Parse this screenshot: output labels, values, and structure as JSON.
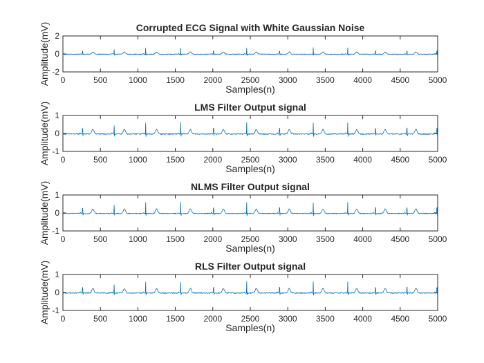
{
  "colors": {
    "signal": "#0072bd",
    "axis": "#262626",
    "background": "#ffffff"
  },
  "chart_data": [
    {
      "type": "line",
      "title": "Corrupted ECG Signal with White Gaussian Noise",
      "xlabel": "Samples(n)",
      "ylabel": "Amplitude(mV)",
      "xlim": [
        0,
        5000
      ],
      "ylim": [
        -2,
        2
      ],
      "xticks": [
        0,
        500,
        1000,
        1500,
        2000,
        2500,
        3000,
        3500,
        4000,
        4500,
        5000
      ],
      "yticks": [
        -2,
        0,
        2
      ],
      "baseline": -0.03,
      "noise": 0.035,
      "r_peak_amplitude": 0.7,
      "r_peak_samples": [
        262,
        683,
        1104,
        1572,
        2010,
        2452,
        2890,
        3340,
        3800,
        4170,
        4590,
        4990
      ],
      "t_wave_samples": [
        400,
        820,
        1250,
        1700,
        2140,
        2580,
        3020,
        3470,
        3920,
        4300,
        4710
      ]
    },
    {
      "type": "line",
      "title": "LMS Filter Output signal",
      "xlabel": "Samples(n)",
      "ylabel": "Amplitude(mV)",
      "xlim": [
        0,
        5000
      ],
      "ylim": [
        -1,
        1
      ],
      "xticks": [
        0,
        500,
        1000,
        1500,
        2000,
        2500,
        3000,
        3500,
        4000,
        4500,
        5000
      ],
      "yticks": [
        -1,
        0,
        1
      ],
      "baseline": -0.03,
      "noise": 0.025,
      "r_peak_amplitude": 0.62,
      "r_peak_samples": [
        262,
        683,
        1104,
        1572,
        2010,
        2452,
        2890,
        3340,
        3800,
        4170,
        4590,
        4990
      ],
      "t_wave_samples": [
        400,
        820,
        1250,
        1700,
        2140,
        2580,
        3020,
        3470,
        3920,
        4300,
        4710
      ]
    },
    {
      "type": "line",
      "title": "NLMS Filter Output signal",
      "xlabel": "Samples(n)",
      "ylabel": "Amplitude(mV)",
      "xlim": [
        0,
        5000
      ],
      "ylim": [
        -1,
        1
      ],
      "xticks": [
        0,
        500,
        1000,
        1500,
        2000,
        2500,
        3000,
        3500,
        4000,
        4500,
        5000
      ],
      "yticks": [
        -1,
        0,
        1
      ],
      "baseline": -0.03,
      "noise": 0.025,
      "r_peak_amplitude": 0.62,
      "r_peak_samples": [
        262,
        683,
        1104,
        1572,
        2010,
        2452,
        2890,
        3340,
        3800,
        4170,
        4590,
        4990
      ],
      "t_wave_samples": [
        400,
        820,
        1250,
        1700,
        2140,
        2580,
        3020,
        3470,
        3920,
        4300,
        4710
      ]
    },
    {
      "type": "line",
      "title": "RLS Filter Output signal",
      "xlabel": "Samples(n)",
      "ylabel": "Amplitude(mV)",
      "xlim": [
        0,
        5000
      ],
      "ylim": [
        -1,
        1
      ],
      "xticks": [
        0,
        500,
        1000,
        1500,
        2000,
        2500,
        3000,
        3500,
        4000,
        4500,
        5000
      ],
      "yticks": [
        -1,
        0,
        1
      ],
      "baseline": -0.03,
      "noise": 0.025,
      "r_peak_amplitude": 0.62,
      "r_peak_samples": [
        262,
        683,
        1104,
        1572,
        2010,
        2452,
        2890,
        3340,
        3800,
        4170,
        4590,
        4990
      ],
      "t_wave_samples": [
        400,
        820,
        1250,
        1700,
        2140,
        2580,
        3020,
        3470,
        3920,
        4300,
        4710
      ]
    }
  ]
}
